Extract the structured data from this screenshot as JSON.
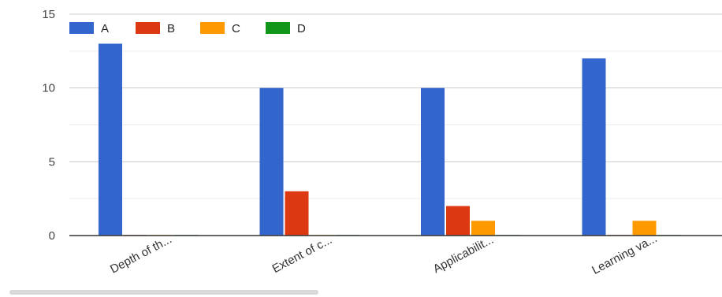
{
  "chart_data": {
    "type": "bar",
    "categories": [
      "Depth of th...",
      "Extent of c...",
      "Applicabilit...",
      "Learning va..."
    ],
    "series": [
      {
        "name": "A",
        "values": [
          13,
          10,
          10,
          12
        ],
        "color": "#3366cc"
      },
      {
        "name": "B",
        "values": [
          0,
          3,
          2,
          0
        ],
        "color": "#dc3912"
      },
      {
        "name": "C",
        "values": [
          0,
          0,
          1,
          1
        ],
        "color": "#ff9900"
      },
      {
        "name": "D",
        "values": [
          0,
          0,
          0,
          0
        ],
        "color": "#109618"
      }
    ],
    "yticks": [
      "0",
      "5",
      "10",
      "15"
    ],
    "ylim": [
      0,
      15
    ],
    "grid": true,
    "legend": "top-left",
    "title": "",
    "xlabel": "",
    "ylabel": ""
  }
}
